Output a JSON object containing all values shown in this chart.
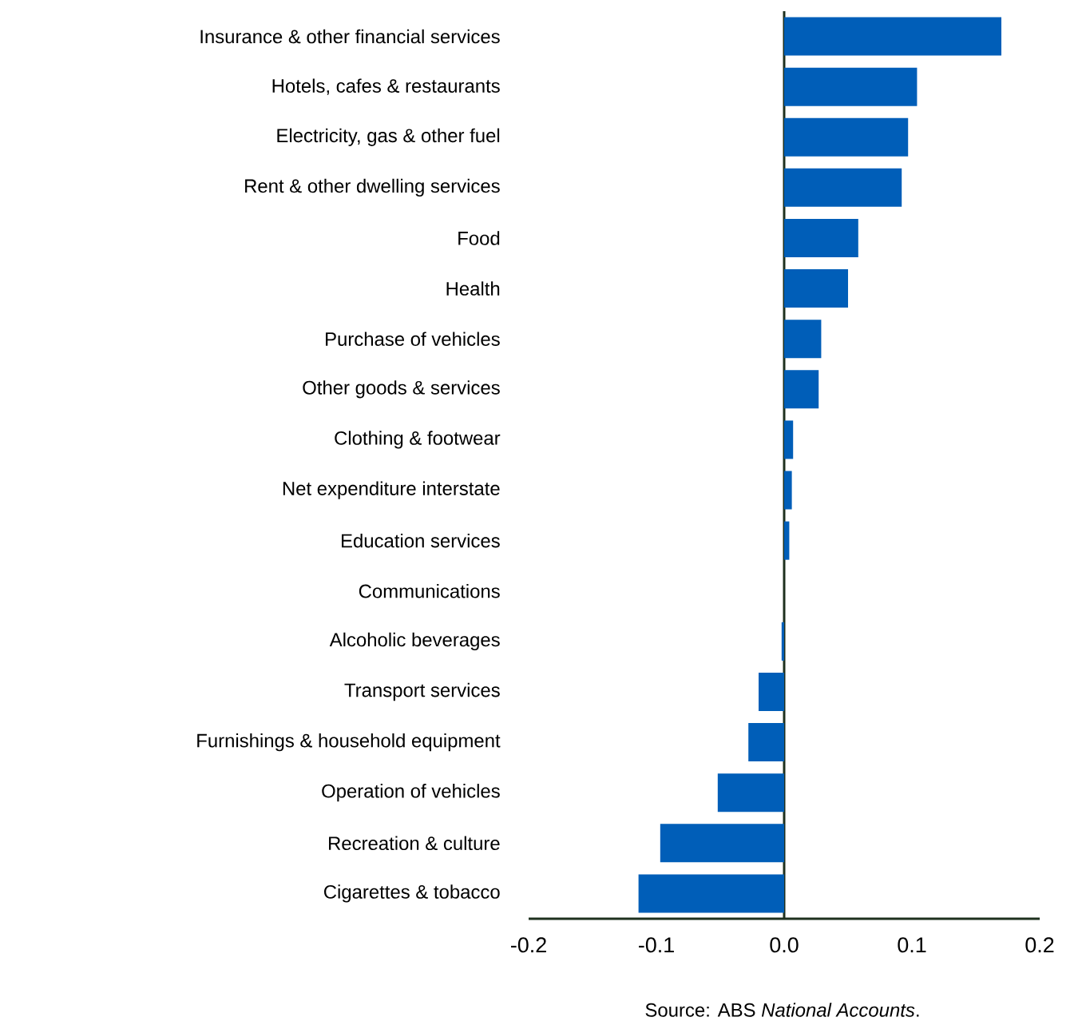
{
  "chart_data": {
    "type": "bar",
    "orientation": "horizontal",
    "color": "#005eb8",
    "categories": [
      "Insurance & other financial services",
      "Hotels, cafes & restaurants",
      "Electricity, gas & other fuel",
      "Rent & other dwelling services",
      "Food",
      "Health",
      "Purchase of vehicles",
      "Other goods & services",
      "Clothing & footwear",
      "Net expenditure interstate",
      "Education services",
      "Communications",
      "Alcoholic beverages",
      "Transport services",
      "Furnishings & household equipment",
      "Operation of vehicles",
      "Recreation & culture",
      "Cigarettes & tobacco"
    ],
    "values": [
      0.17,
      0.104,
      0.097,
      0.092,
      0.058,
      0.05,
      0.029,
      0.027,
      0.007,
      0.006,
      0.004,
      0,
      -0.002,
      -0.02,
      -0.028,
      -0.052,
      -0.097,
      -0.114
    ],
    "xlim": [
      -0.2,
      0.2
    ],
    "xticks": [
      {
        "value": -0.2,
        "label": "-0.2"
      },
      {
        "value": -0.1,
        "label": "-0.1"
      },
      {
        "value": 0,
        "label": "0.0"
      },
      {
        "value": 0.1,
        "label": "0.1"
      },
      {
        "value": 0.2,
        "label": "0.2"
      }
    ],
    "annotations": [
      "Source: ABS *National Accounts*."
    ]
  }
}
